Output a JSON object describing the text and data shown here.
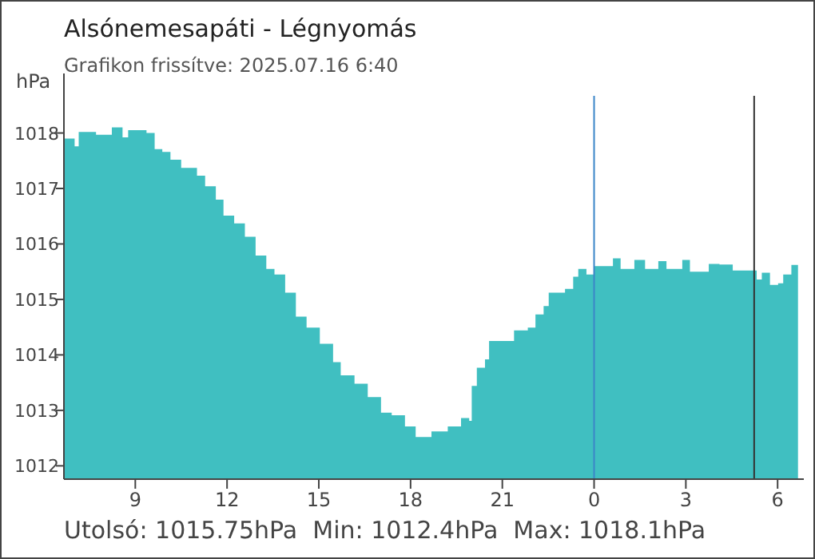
{
  "chart_data": {
    "type": "area",
    "title": "Alsónemesapáti - Légnyomás",
    "subtitle": "Grafikon frissítve: 2025.07.16 6:40",
    "ylabel": "hPa",
    "annotations": [
      "Utolsó: 1015.75hPa  Min: 1012.4hPa  Max: 1018.1hPa"
    ],
    "x": [
      "2025-07-15T06:40",
      "2025-07-15T07:01",
      "2025-07-15T07:09",
      "2025-07-15T07:43",
      "2025-07-15T08:14",
      "2025-07-15T08:35",
      "2025-07-15T08:46",
      "2025-07-15T09:22",
      "2025-07-15T09:38",
      "2025-07-15T09:53",
      "2025-07-15T10:09",
      "2025-07-15T10:30",
      "2025-07-15T11:01",
      "2025-07-15T11:17",
      "2025-07-15T11:38",
      "2025-07-15T11:53",
      "2025-07-15T12:14",
      "2025-07-15T12:35",
      "2025-07-15T12:56",
      "2025-07-15T13:17",
      "2025-07-15T13:33",
      "2025-07-15T13:54",
      "2025-07-15T14:15",
      "2025-07-15T14:36",
      "2025-07-15T15:02",
      "2025-07-15T15:28",
      "2025-07-15T15:43",
      "2025-07-15T16:10",
      "2025-07-15T16:36",
      "2025-07-15T17:02",
      "2025-07-15T17:23",
      "2025-07-15T17:49",
      "2025-07-15T18:10",
      "2025-07-15T18:41",
      "2025-07-15T19:13",
      "2025-07-15T19:39",
      "2025-07-15T19:55",
      "2025-07-15T20:00",
      "2025-07-15T20:10",
      "2025-07-15T20:26",
      "2025-07-15T20:34",
      "2025-07-15T21:08",
      "2025-07-15T21:23",
      "2025-07-15T21:50",
      "2025-07-15T22:05",
      "2025-07-15T22:21",
      "2025-07-15T22:31",
      "2025-07-15T23:03",
      "2025-07-15T23:19",
      "2025-07-15T23:29",
      "2025-07-15T23:45",
      "2025-07-16T00:00",
      "2025-07-16T00:37",
      "2025-07-16T00:52",
      "2025-07-16T01:19",
      "2025-07-16T01:40",
      "2025-07-16T02:06",
      "2025-07-16T02:22",
      "2025-07-16T02:53",
      "2025-07-16T03:08",
      "2025-07-16T03:45",
      "2025-07-16T04:06",
      "2025-07-16T04:32",
      "2025-07-16T05:08",
      "2025-07-16T05:19",
      "2025-07-16T05:29",
      "2025-07-16T05:45",
      "2025-07-16T06:01",
      "2025-07-16T06:11",
      "2025-07-16T06:27",
      "2025-07-16T06:40"
    ],
    "series": [
      {
        "color": "#40bfc1",
        "values": [
          1017.9,
          1017.76,
          1018.02,
          1017.97,
          1018.1,
          1017.92,
          1018.05,
          1018.0,
          1017.71,
          1017.66,
          1017.52,
          1017.37,
          1017.23,
          1017.04,
          1016.8,
          1016.51,
          1016.37,
          1016.13,
          1015.79,
          1015.55,
          1015.45,
          1015.12,
          1014.69,
          1014.49,
          1014.2,
          1013.87,
          1013.63,
          1013.48,
          1013.24,
          1012.96,
          1012.91,
          1012.71,
          1012.52,
          1012.62,
          1012.71,
          1012.86,
          1012.81,
          1013.44,
          1013.77,
          1013.92,
          1014.25,
          1014.25,
          1014.44,
          1014.49,
          1014.73,
          1014.88,
          1015.12,
          1015.19,
          1015.41,
          1015.55,
          1015.45,
          1015.6,
          1015.74,
          1015.55,
          1015.71,
          1015.55,
          1015.69,
          1015.55,
          1015.71,
          1015.5,
          1015.64,
          1015.63,
          1015.52,
          1015.52,
          1015.36,
          1015.48,
          1015.26,
          1015.29,
          1015.45,
          1015.62,
          1015.75
        ]
      }
    ],
    "xlim": [
      "2025-07-15T06:40",
      "2025-07-16T06:42"
    ],
    "xticks": [
      {
        "value": "2025-07-15T09:00",
        "label": "9"
      },
      {
        "value": "2025-07-15T12:00",
        "label": "12"
      },
      {
        "value": "2025-07-15T15:00",
        "label": "15"
      },
      {
        "value": "2025-07-15T18:00",
        "label": "18"
      },
      {
        "value": "2025-07-15T21:00",
        "label": "21"
      },
      {
        "value": "2025-07-16T00:00",
        "label": "0"
      },
      {
        "value": "2025-07-16T03:00",
        "label": "3"
      },
      {
        "value": "2025-07-16T06:00",
        "label": "6"
      }
    ],
    "ylim": [
      1011.76,
      1018.67
    ],
    "yticks": [
      1012,
      1013,
      1014,
      1015,
      1016,
      1017,
      1018
    ],
    "ref_lines": [
      {
        "axis": "x",
        "value": "2025-07-16T00:00",
        "color": "#3b86c8"
      },
      {
        "axis": "x",
        "value": "2025-07-16T05:14",
        "color": "#333333"
      }
    ],
    "grid": false
  }
}
